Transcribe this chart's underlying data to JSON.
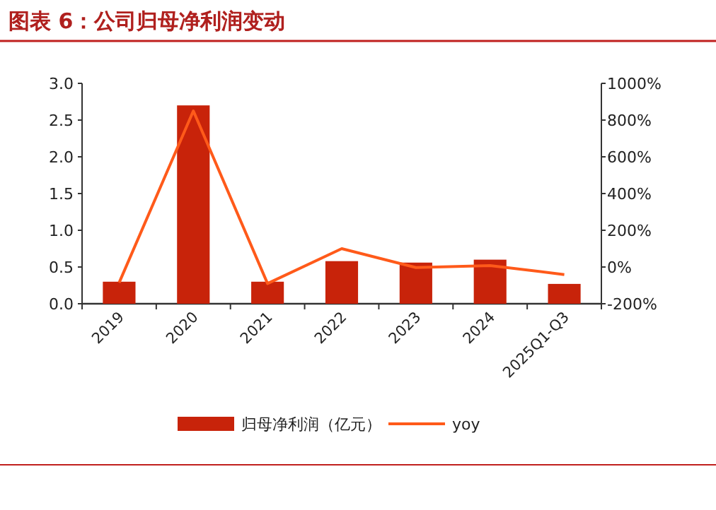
{
  "chart_data": {
    "type": "bar",
    "title": "图表 6：公司归母净利润变动",
    "categories": [
      "2019",
      "2020",
      "2021",
      "2022",
      "2023",
      "2024",
      "2025Q1-Q3"
    ],
    "series": [
      {
        "name": "归母净利润（亿元）",
        "color": "#c8230a",
        "values": [
          0.3,
          2.7,
          0.3,
          0.58,
          0.56,
          0.6,
          0.27
        ]
      },
      {
        "name": "yoy",
        "type": "line",
        "axis": "y2",
        "color": "#ff5a1a",
        "values": [
          -85,
          850,
          -90,
          100,
          -3,
          8,
          -41
        ]
      }
    ],
    "ylim": [
      0,
      3
    ],
    "yticks": [
      {
        "value": 0,
        "label": "0.0"
      },
      {
        "value": 0.5,
        "label": "0.5"
      },
      {
        "value": 1,
        "label": "1.0"
      },
      {
        "value": 1.5,
        "label": "1.5"
      },
      {
        "value": 2,
        "label": "2.0"
      },
      {
        "value": 2.5,
        "label": "2.5"
      },
      {
        "value": 3,
        "label": "3.0"
      }
    ],
    "y2lim": [
      -200,
      1000
    ],
    "y2ticks": [
      {
        "value": -200,
        "label": "-200%"
      },
      {
        "value": 0,
        "label": "0%"
      },
      {
        "value": 200,
        "label": "200%"
      },
      {
        "value": 400,
        "label": "400%"
      },
      {
        "value": 600,
        "label": "600%"
      },
      {
        "value": 800,
        "label": "800%"
      },
      {
        "value": 1000,
        "label": "1000%"
      }
    ],
    "legend": "bottom"
  }
}
